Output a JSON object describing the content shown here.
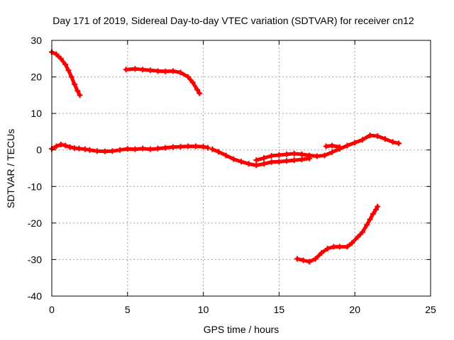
{
  "chart_data": {
    "type": "scatter",
    "title": "Day 171 of 2019, Sidereal Day-to-day VTEC variation (SDTVAR) for receiver cn12",
    "xlabel": "GPS time / hours",
    "ylabel": "SDTVAR / TECUs",
    "xlim": [
      0,
      25
    ],
    "ylim": [
      -40,
      30
    ],
    "xticks": [
      0,
      5,
      10,
      15,
      20,
      25
    ],
    "yticks": [
      -40,
      -30,
      -20,
      -10,
      0,
      10,
      20,
      30
    ],
    "grid": true,
    "series_color": "#ff0000",
    "series": [
      {
        "name": "track-1",
        "points": [
          [
            0.0,
            26.8
          ],
          [
            0.3,
            26.2
          ],
          [
            0.6,
            25.0
          ],
          [
            0.9,
            23.4
          ],
          [
            1.1,
            21.8
          ],
          [
            1.3,
            20.0
          ],
          [
            1.5,
            18.0
          ],
          [
            1.7,
            16.2
          ],
          [
            1.85,
            15.0
          ]
        ]
      },
      {
        "name": "track-2",
        "points": [
          [
            4.9,
            22.0
          ],
          [
            5.5,
            22.2
          ],
          [
            6.0,
            22.0
          ],
          [
            6.5,
            21.8
          ],
          [
            7.0,
            21.6
          ],
          [
            7.5,
            21.5
          ],
          [
            8.0,
            21.6
          ],
          [
            8.5,
            21.2
          ],
          [
            9.0,
            20.0
          ],
          [
            9.3,
            18.5
          ],
          [
            9.6,
            16.5
          ],
          [
            9.75,
            15.5
          ]
        ]
      },
      {
        "name": "track-3",
        "points": [
          [
            0.0,
            0.3
          ],
          [
            0.3,
            1.0
          ],
          [
            0.6,
            1.5
          ],
          [
            0.9,
            1.2
          ],
          [
            1.2,
            0.8
          ],
          [
            1.5,
            0.5
          ],
          [
            1.8,
            0.4
          ],
          [
            2.2,
            0.2
          ],
          [
            2.5,
            0.0
          ],
          [
            3.0,
            -0.3
          ],
          [
            3.5,
            -0.4
          ],
          [
            4.0,
            -0.3
          ],
          [
            4.5,
            0.0
          ],
          [
            5.0,
            0.3
          ],
          [
            5.5,
            0.2
          ],
          [
            6.0,
            0.4
          ],
          [
            6.5,
            0.2
          ],
          [
            7.0,
            0.4
          ],
          [
            7.5,
            0.6
          ],
          [
            8.0,
            0.8
          ],
          [
            8.5,
            0.9
          ],
          [
            9.0,
            1.0
          ],
          [
            9.5,
            1.0
          ],
          [
            10.0,
            0.9
          ],
          [
            10.3,
            0.6
          ]
        ]
      },
      {
        "name": "track-4",
        "points": [
          [
            10.6,
            0.2
          ],
          [
            11.0,
            -0.5
          ],
          [
            11.5,
            -1.5
          ],
          [
            12.0,
            -2.5
          ],
          [
            12.5,
            -3.2
          ],
          [
            13.0,
            -3.8
          ],
          [
            13.5,
            -4.2
          ],
          [
            14.0,
            -3.8
          ],
          [
            14.5,
            -3.3
          ],
          [
            15.0,
            -3.2
          ],
          [
            15.5,
            -3.0
          ],
          [
            16.0,
            -2.8
          ],
          [
            16.5,
            -2.6
          ],
          [
            17.0,
            -2.3
          ]
        ]
      },
      {
        "name": "track-5",
        "points": [
          [
            13.5,
            -2.8
          ],
          [
            14.0,
            -2.2
          ],
          [
            14.5,
            -1.6
          ],
          [
            15.0,
            -1.4
          ],
          [
            15.5,
            -1.2
          ],
          [
            16.0,
            -1.0
          ],
          [
            16.5,
            -1.2
          ],
          [
            17.0,
            -1.5
          ],
          [
            17.5,
            -1.7
          ],
          [
            18.0,
            -1.5
          ],
          [
            18.5,
            -0.6
          ],
          [
            19.0,
            0.3
          ],
          [
            19.5,
            1.2
          ],
          [
            20.0,
            2.0
          ],
          [
            20.5,
            2.8
          ],
          [
            21.0,
            4.0
          ],
          [
            21.5,
            3.8
          ],
          [
            22.0,
            3.0
          ],
          [
            22.5,
            2.2
          ],
          [
            22.9,
            1.8
          ]
        ]
      },
      {
        "name": "track-6",
        "points": [
          [
            18.1,
            1.0
          ],
          [
            18.5,
            1.2
          ],
          [
            19.0,
            0.8
          ]
        ]
      },
      {
        "name": "track-7",
        "points": [
          [
            16.2,
            -29.8
          ],
          [
            16.6,
            -30.2
          ],
          [
            17.0,
            -30.6
          ],
          [
            17.4,
            -29.8
          ],
          [
            17.8,
            -28.2
          ],
          [
            18.2,
            -27.0
          ],
          [
            18.6,
            -26.5
          ],
          [
            19.0,
            -26.5
          ],
          [
            19.5,
            -26.5
          ],
          [
            19.8,
            -25.5
          ],
          [
            20.2,
            -23.8
          ],
          [
            20.5,
            -22.5
          ],
          [
            20.8,
            -20.5
          ],
          [
            21.0,
            -19.0
          ],
          [
            21.2,
            -17.5
          ],
          [
            21.4,
            -16.3
          ],
          [
            21.5,
            -15.5
          ]
        ]
      }
    ]
  }
}
